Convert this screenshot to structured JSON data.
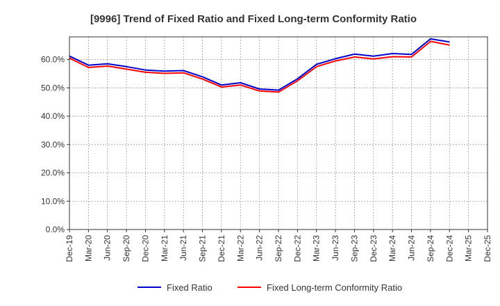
{
  "chart_data": {
    "type": "line",
    "title": "[9996]  Trend of Fixed Ratio and Fixed Long-term Conformity Ratio",
    "xlabel": "",
    "ylabel": "",
    "x": [
      "Dec-19",
      "Mar-20",
      "Jun-20",
      "Sep-20",
      "Dec-20",
      "Mar-21",
      "Jun-21",
      "Sep-21",
      "Dec-21",
      "Mar-22",
      "Jun-22",
      "Sep-22",
      "Dec-22",
      "Mar-23",
      "Jun-23",
      "Sep-23",
      "Dec-23",
      "Mar-24",
      "Jun-24",
      "Sep-24",
      "Dec-24"
    ],
    "x_tick_labels": [
      "Dec-19",
      "Mar-20",
      "Jun-20",
      "Sep-20",
      "Dec-20",
      "Mar-21",
      "Jun-21",
      "Sep-21",
      "Dec-21",
      "Mar-22",
      "Jun-22",
      "Sep-22",
      "Dec-22",
      "Mar-23",
      "Jun-23",
      "Sep-23",
      "Dec-23",
      "Mar-24",
      "Jun-24",
      "Sep-24",
      "Dec-24",
      "Mar-25",
      "Dec-25"
    ],
    "y_ticks": [
      0,
      10,
      20,
      30,
      40,
      50,
      60
    ],
    "y_tick_labels": [
      "0.0%",
      "10.0%",
      "20.0%",
      "30.0%",
      "40.0%",
      "50.0%",
      "60.0%"
    ],
    "ylim": [
      0,
      68
    ],
    "grid": true,
    "legend_position": "bottom",
    "series": [
      {
        "name": "Fixed Ratio",
        "color": "#0000cc",
        "values": [
          61.2,
          58.0,
          58.5,
          57.5,
          56.3,
          55.9,
          56.1,
          53.9,
          51.0,
          51.8,
          49.6,
          49.2,
          53.2,
          58.3,
          60.3,
          61.9,
          61.2,
          62.1,
          61.8,
          67.3,
          66.2
        ]
      },
      {
        "name": "Fixed Long-term Conformity Ratio",
        "color": "#ff0000",
        "values": [
          60.5,
          57.2,
          57.7,
          56.6,
          55.5,
          55.1,
          55.3,
          53.1,
          50.3,
          51.0,
          48.9,
          48.5,
          52.5,
          57.5,
          59.5,
          60.9,
          60.2,
          61.0,
          60.9,
          66.4,
          65.1
        ]
      }
    ]
  }
}
